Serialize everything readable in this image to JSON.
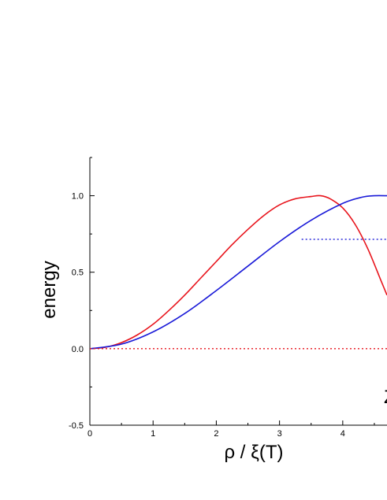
{
  "chart_data": {
    "type": "line",
    "title": "",
    "xlabel": "ρ / ξ(T)",
    "ylabel": "energy",
    "xlim": [
      0,
      4.7
    ],
    "ylim": [
      -0.5,
      1.25
    ],
    "x_ticks": [
      "0",
      "1",
      "2",
      "3",
      "4"
    ],
    "y_ticks": [
      "-0.5",
      "0.0",
      "0.5",
      "1.0"
    ],
    "grid": false,
    "legend": "none",
    "partial_label": "Z",
    "series": [
      {
        "color": "#e8141c",
        "style": "solid",
        "x": [
          0,
          0.25,
          0.5,
          0.75,
          1.0,
          1.25,
          1.5,
          1.75,
          2.0,
          2.25,
          2.5,
          2.75,
          3.0,
          3.25,
          3.5,
          3.65,
          3.8,
          4.0,
          4.2,
          4.4,
          4.6,
          4.7
        ],
        "y": [
          0.0,
          0.01,
          0.04,
          0.09,
          0.16,
          0.25,
          0.35,
          0.46,
          0.57,
          0.68,
          0.78,
          0.87,
          0.94,
          0.98,
          0.995,
          1.0,
          0.98,
          0.92,
          0.81,
          0.65,
          0.45,
          0.35
        ]
      },
      {
        "color": "#1a1ad8",
        "style": "solid",
        "x": [
          0,
          0.5,
          1.0,
          1.5,
          2.0,
          2.5,
          3.0,
          3.5,
          4.0,
          4.3,
          4.5,
          4.7
        ],
        "y": [
          0.0,
          0.03,
          0.11,
          0.23,
          0.38,
          0.54,
          0.7,
          0.84,
          0.95,
          0.99,
          1.0,
          1.0
        ]
      },
      {
        "color": "#1a1ad8",
        "style": "dotted",
        "x": [
          3.35,
          4.7
        ],
        "y": [
          0.715,
          0.715
        ]
      },
      {
        "color": "#e8141c",
        "style": "dotted",
        "x": [
          0,
          4.7
        ],
        "y": [
          0.0,
          0.0
        ]
      }
    ]
  }
}
